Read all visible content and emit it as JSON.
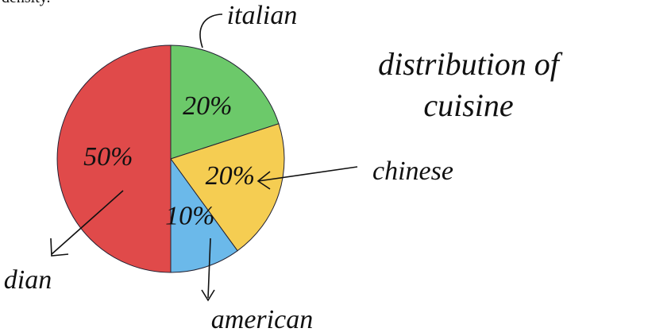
{
  "page_text": "density.",
  "chart_data": {
    "type": "pie",
    "title": "distribution of cuisine",
    "categories": [
      "italian",
      "chinese",
      "american",
      "dian"
    ],
    "values": [
      20,
      20,
      10,
      50
    ],
    "value_labels": [
      "20%",
      "20%",
      "10%",
      "50%"
    ],
    "colors": [
      "#6cc96a",
      "#f5cd52",
      "#6bb9ea",
      "#e04a4a"
    ]
  }
}
